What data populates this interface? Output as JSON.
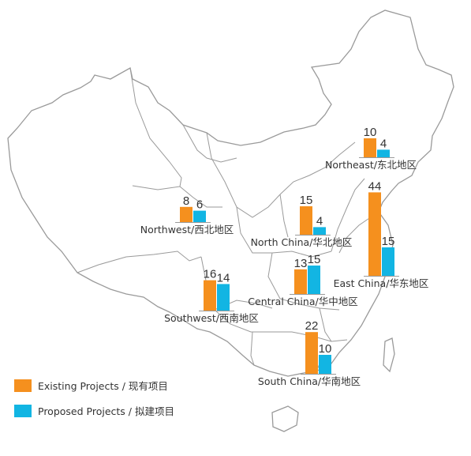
{
  "colors": {
    "existing": "#F5901E",
    "proposed": "#12B5E3",
    "border": "#9a9a9a"
  },
  "legend": {
    "existing_label": "Existing Projects / 现有项目",
    "proposed_label": "Proposed Projects / 拟建项目"
  },
  "regions": [
    {
      "name": "Northeast/东北地区",
      "existing": 10,
      "proposed": 4
    },
    {
      "name": "Northwest/西北地区",
      "existing": 8,
      "proposed": 6
    },
    {
      "name": "North China/华北地区",
      "existing": 15,
      "proposed": 4
    },
    {
      "name": "East China/华东地区",
      "existing": 44,
      "proposed": 15
    },
    {
      "name": "Central China/华中地区",
      "existing": 13,
      "proposed": 15
    },
    {
      "name": "Southwest/西南地区",
      "existing": 16,
      "proposed": 14
    },
    {
      "name": "South China/华南地区",
      "existing": 22,
      "proposed": 10
    }
  ]
}
